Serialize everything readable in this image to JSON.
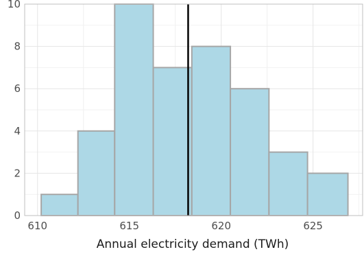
{
  "chart_data": {
    "type": "bar",
    "subtype": "histogram",
    "title": "",
    "xlabel": "Annual electricity demand (TWh)",
    "ylabel": "",
    "xlim": [
      609.3,
      627.7
    ],
    "ylim": [
      0,
      10
    ],
    "x_ticks": [
      610,
      615,
      620,
      625
    ],
    "x_tick_labels": [
      "610",
      "615",
      "620",
      "625"
    ],
    "y_ticks": [
      0,
      2,
      4,
      6,
      8,
      10
    ],
    "y_tick_labels": [
      "0",
      "2",
      "4",
      "6",
      "8",
      "10"
    ],
    "bins": [
      {
        "start": 610.2,
        "end": 612.2,
        "count": 1
      },
      {
        "start": 612.2,
        "end": 614.2,
        "count": 4
      },
      {
        "start": 614.2,
        "end": 616.3,
        "count": 10
      },
      {
        "start": 616.3,
        "end": 618.4,
        "count": 7
      },
      {
        "start": 618.4,
        "end": 620.5,
        "count": 8
      },
      {
        "start": 620.5,
        "end": 622.6,
        "count": 6
      },
      {
        "start": 622.6,
        "end": 624.7,
        "count": 3
      },
      {
        "start": 624.7,
        "end": 626.9,
        "count": 2
      }
    ],
    "reference_line_x": 618.2,
    "grid": true,
    "legend": "none",
    "colors": {
      "bar_fill": "#add8e6",
      "bar_stroke": "#a6a6a6",
      "reference_line": "#000000",
      "grid_major": "#e5e5e5",
      "grid_minor": "#f2f2f2",
      "panel_border": "#bfbfbf"
    }
  }
}
